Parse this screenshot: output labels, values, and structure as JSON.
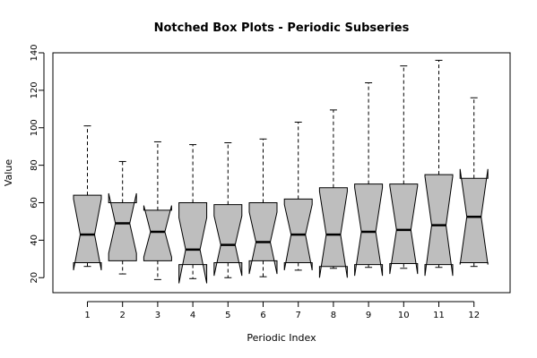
{
  "chart_data": {
    "type": "boxplot",
    "title": "Notched Box Plots - Periodic Subseries",
    "xlabel": "Periodic Index",
    "ylabel": "Value",
    "ylim": [
      12,
      140
    ],
    "yticks": [
      20,
      40,
      60,
      80,
      100,
      120,
      140
    ],
    "categories": [
      "1",
      "2",
      "3",
      "4",
      "5",
      "6",
      "7",
      "8",
      "9",
      "10",
      "11",
      "12"
    ],
    "boxes": [
      {
        "whisker_low": 26,
        "q1": 28,
        "median": 43,
        "q3": 64,
        "whisker_high": 101,
        "notch_low": 24,
        "notch_high": 62
      },
      {
        "whisker_low": 22,
        "q1": 29,
        "median": 49,
        "q3": 60,
        "whisker_high": 82,
        "notch_low": 33,
        "notch_high": 65
      },
      {
        "whisker_low": 19,
        "q1": 29,
        "median": 44.5,
        "q3": 56,
        "whisker_high": 92.5,
        "notch_low": 31,
        "notch_high": 58.5
      },
      {
        "whisker_low": 19.5,
        "q1": 27,
        "median": 35,
        "q3": 60,
        "whisker_high": 91,
        "notch_low": 17,
        "notch_high": 52
      },
      {
        "whisker_low": 20,
        "q1": 28,
        "median": 37.5,
        "q3": 59,
        "whisker_high": 92,
        "notch_low": 21,
        "notch_high": 53
      },
      {
        "whisker_low": 20.5,
        "q1": 29,
        "median": 39,
        "q3": 60,
        "whisker_high": 94,
        "notch_low": 22,
        "notch_high": 55
      },
      {
        "whisker_low": 24,
        "q1": 28,
        "median": 43,
        "q3": 62,
        "whisker_high": 103,
        "notch_low": 24,
        "notch_high": 59
      },
      {
        "whisker_low": 25,
        "q1": 26,
        "median": 43,
        "q3": 68,
        "whisker_high": 109.5,
        "notch_low": 20,
        "notch_high": 66
      },
      {
        "whisker_low": 25.5,
        "q1": 27,
        "median": 44.5,
        "q3": 70,
        "whisker_high": 124,
        "notch_low": 21,
        "notch_high": 68
      },
      {
        "whisker_low": 25,
        "q1": 27.5,
        "median": 45.5,
        "q3": 70,
        "whisker_high": 133,
        "notch_low": 22,
        "notch_high": 69
      },
      {
        "whisker_low": 25.5,
        "q1": 27,
        "median": 48,
        "q3": 75,
        "whisker_high": 136,
        "notch_low": 21,
        "notch_high": 74
      },
      {
        "whisker_low": 26,
        "q1": 28,
        "median": 52.5,
        "q3": 73,
        "whisker_high": 116,
        "notch_low": 27,
        "notch_high": 78
      }
    ]
  }
}
